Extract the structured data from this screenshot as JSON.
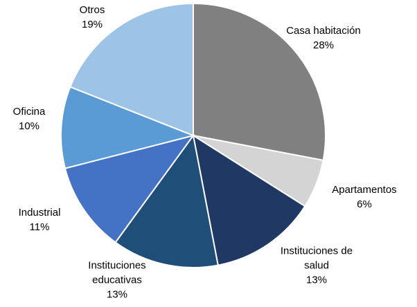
{
  "chart_data": {
    "type": "pie",
    "categories": [
      "Casa habitación",
      "Apartamentos",
      "Instituciones de salud",
      "Instituciones educativas",
      "Industrial",
      "Oficina",
      "Otros"
    ],
    "values": [
      28,
      6,
      13,
      13,
      11,
      10,
      19
    ],
    "value_labels": [
      "28%",
      "6%",
      "13%",
      "13%",
      "11%",
      "10%",
      "19%"
    ],
    "colors": [
      "#808080",
      "#d4d4d4",
      "#203864",
      "#1f4e79",
      "#4472c4",
      "#5b9bd5",
      "#9dc3e6"
    ]
  }
}
